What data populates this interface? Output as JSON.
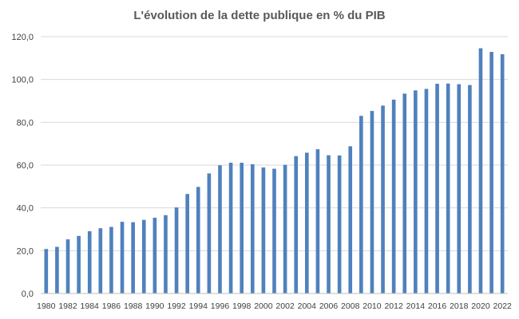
{
  "chart_data": {
    "type": "bar",
    "title": "L'évolution de la dette publique en % du PIB",
    "xlabel": "",
    "ylabel": "",
    "ylim": [
      0,
      120
    ],
    "ytick_labels": [
      "0,0",
      "20,0",
      "40,0",
      "60,0",
      "80,0",
      "100,0",
      "120,0"
    ],
    "grid": true,
    "bar_color": "#4F81BD",
    "categories": [
      "1980",
      "1981",
      "1982",
      "1983",
      "1984",
      "1985",
      "1986",
      "1987",
      "1988",
      "1989",
      "1990",
      "1991",
      "1992",
      "1993",
      "1994",
      "1995",
      "1996",
      "1997",
      "1998",
      "1999",
      "2000",
      "2001",
      "2002",
      "2003",
      "2004",
      "2005",
      "2006",
      "2007",
      "2008",
      "2009",
      "2010",
      "2011",
      "2012",
      "2013",
      "2014",
      "2015",
      "2016",
      "2017",
      "2018",
      "2019",
      "2020",
      "2021",
      "2022"
    ],
    "values": [
      20.8,
      21.8,
      25.3,
      26.9,
      29.1,
      30.5,
      31.1,
      33.5,
      33.3,
      34.4,
      35.4,
      36.6,
      40.2,
      46.5,
      49.8,
      56.1,
      59.9,
      61.1,
      61.1,
      60.4,
      58.9,
      58.3,
      60.1,
      64.2,
      65.8,
      67.4,
      64.6,
      64.5,
      68.8,
      83.0,
      85.3,
      87.8,
      90.6,
      93.4,
      94.9,
      95.6,
      98.0,
      98.1,
      97.8,
      97.4,
      114.6,
      112.9,
      111.8
    ],
    "x_tick_labels": [
      "1980",
      "1982",
      "1984",
      "1986",
      "1988",
      "1990",
      "1992",
      "1994",
      "1996",
      "1998",
      "2000",
      "2002",
      "2004",
      "2006",
      "2008",
      "2010",
      "2012",
      "2014",
      "2016",
      "2018",
      "2020",
      "2022"
    ]
  }
}
